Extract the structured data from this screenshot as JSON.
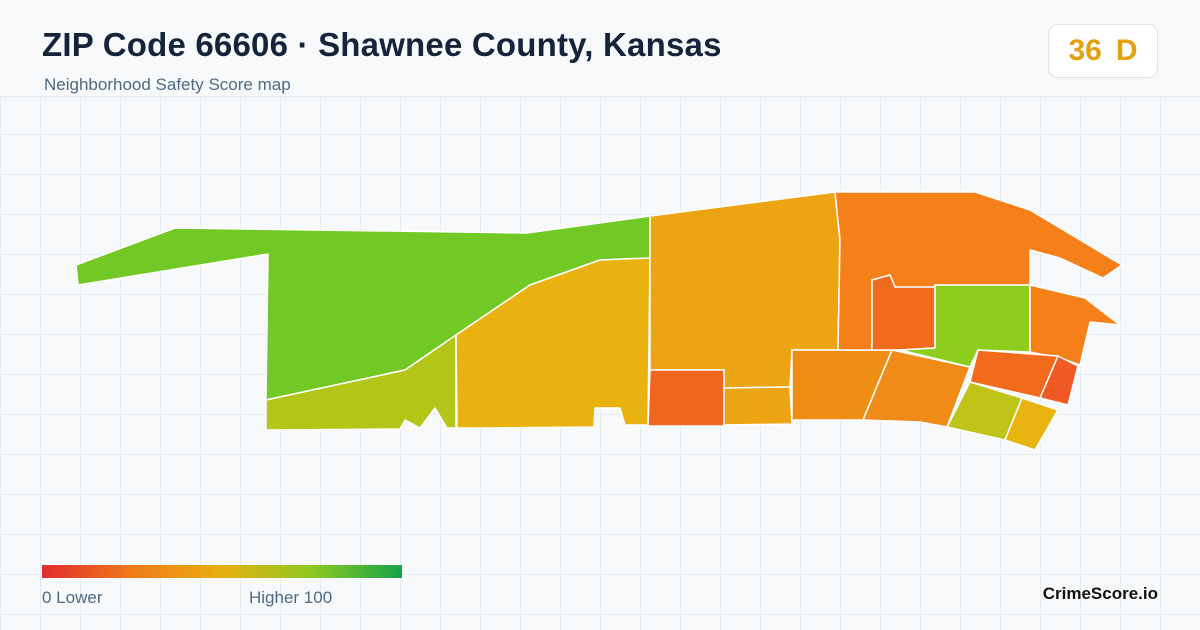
{
  "header": {
    "title": "ZIP Code 66606 · Shawnee County, Kansas",
    "subtitle": "Neighborhood Safety Score map"
  },
  "score": {
    "value": "36",
    "grade": "D",
    "color": "#e5a00f"
  },
  "legend": {
    "low_text": "0  Lower",
    "high_text": "Higher  100",
    "scale_min": 0,
    "scale_max": 100,
    "colors": [
      "#e02d2d",
      "#f07a18",
      "#e5b00f",
      "#8dc921",
      "#16a34a"
    ]
  },
  "map": {
    "regions": [
      {
        "name": "west-large-region",
        "color": "#72c925"
      },
      {
        "name": "southwest-strip-region",
        "color": "#b3c517"
      },
      {
        "name": "center-west-region",
        "color": "#e9b20e"
      },
      {
        "name": "center-region",
        "color": "#eda412"
      },
      {
        "name": "center-south-red-region",
        "color": "#f0661f"
      },
      {
        "name": "center-south-small-region",
        "color": "#eda412"
      },
      {
        "name": "south-middle-region",
        "color": "#ee8e14"
      },
      {
        "name": "south-east-region",
        "color": "#f08b17"
      },
      {
        "name": "northeast-large-region",
        "color": "#f57f18"
      },
      {
        "name": "northeast-inner-region",
        "color": "#f26b1c"
      },
      {
        "name": "east-green-region",
        "color": "#8ccd1d"
      },
      {
        "name": "far-east-region",
        "color": "#f57f18"
      },
      {
        "name": "east-red-region",
        "color": "#f26b1c"
      },
      {
        "name": "east-sliver-region",
        "color": "#ef5a25"
      },
      {
        "name": "southeast-olive-region",
        "color": "#c0c417"
      },
      {
        "name": "southeast-yellow-region",
        "color": "#e8b40f"
      }
    ]
  },
  "brand": {
    "label": "CrimeScore.io"
  }
}
